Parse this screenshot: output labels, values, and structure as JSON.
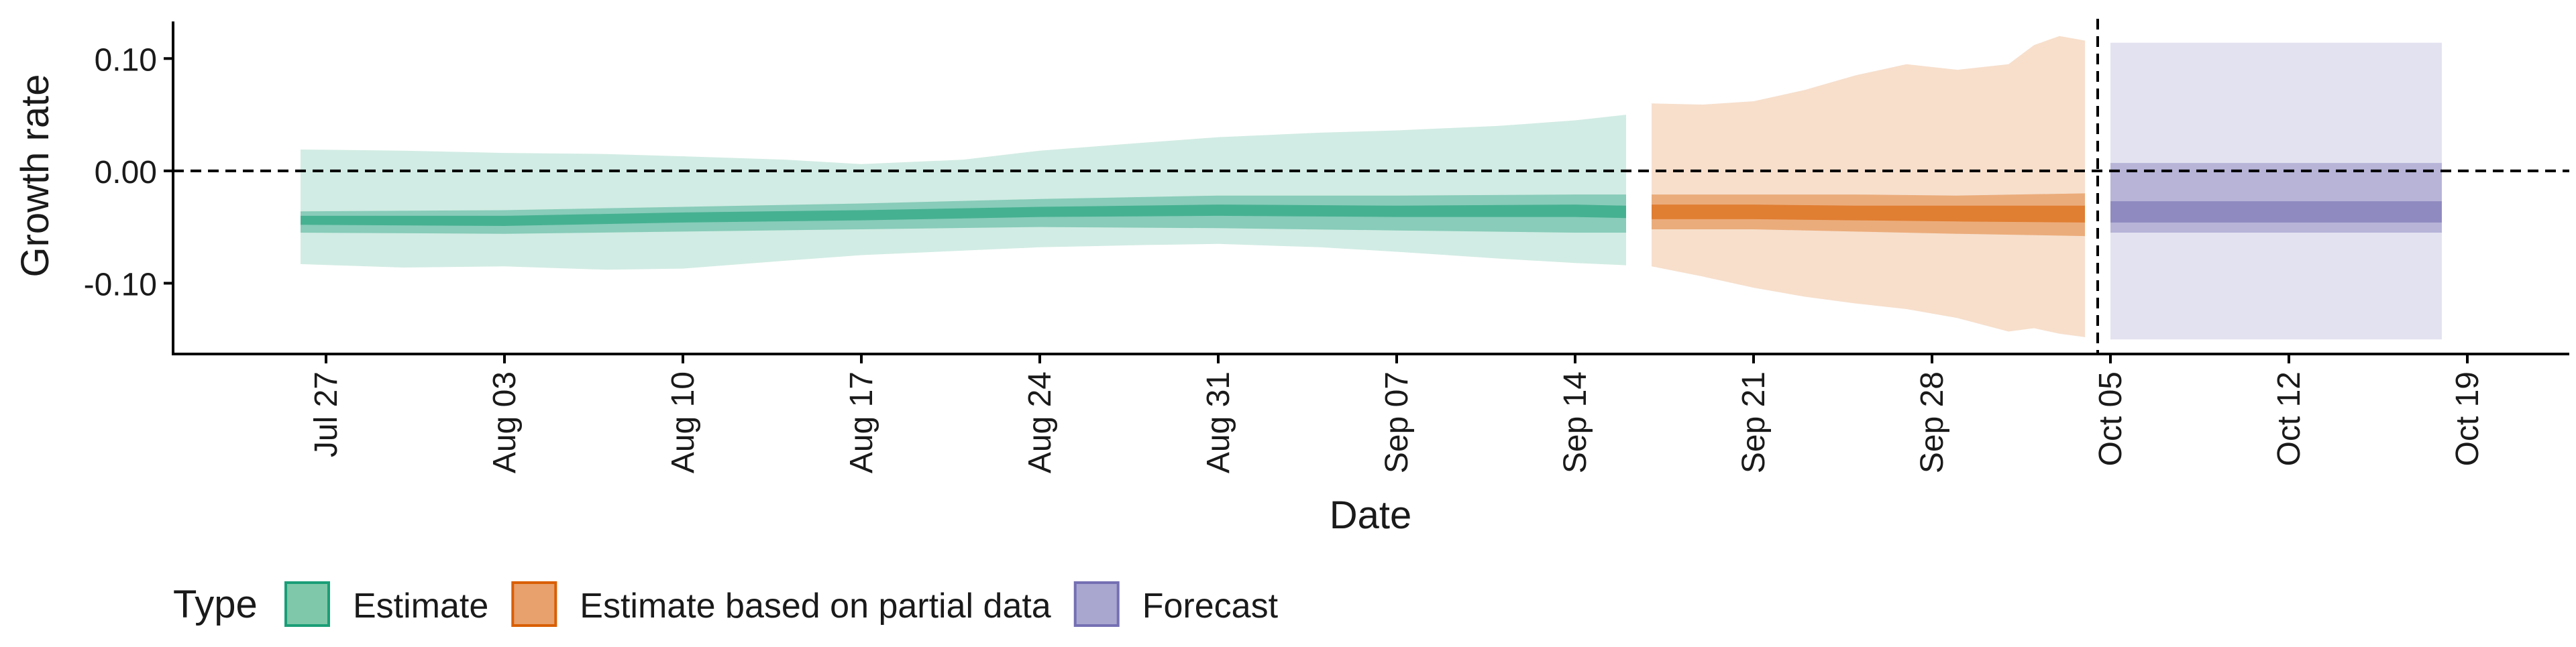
{
  "chart_data": {
    "type": "area",
    "title": "",
    "xlabel": "Date",
    "ylabel": "Growth rate",
    "x_type": "date",
    "xlim": [
      "2020-07-21",
      "2020-10-23"
    ],
    "ylim": [
      -0.163,
      0.133
    ],
    "x_ticks": [
      "2020-07-27",
      "2020-08-03",
      "2020-08-10",
      "2020-08-17",
      "2020-08-24",
      "2020-08-31",
      "2020-09-07",
      "2020-09-14",
      "2020-09-21",
      "2020-09-28",
      "2020-10-05",
      "2020-10-12",
      "2020-10-19"
    ],
    "x_tick_labels": [
      "Jul 27",
      "Aug 03",
      "Aug 10",
      "Aug 17",
      "Aug 24",
      "Aug 31",
      "Sep 07",
      "Sep 14",
      "Sep 21",
      "Sep 28",
      "Oct 05",
      "Oct 12",
      "Oct 19"
    ],
    "y_ticks": [
      0.1,
      0.0,
      -0.1
    ],
    "y_tick_labels": [
      "0.10",
      "0.00",
      "-0.10"
    ],
    "reference_lines": {
      "horizontal_y": 0.0,
      "vertical_x": "2020-10-04"
    },
    "legend": {
      "title": "Type",
      "position": "bottom-left",
      "entries": [
        {
          "label": "Estimate",
          "fill": "#7fc8a9",
          "stroke": "#1b9e77"
        },
        {
          "label": "Estimate based on partial data",
          "fill": "#e8a06c",
          "stroke": "#d95f02"
        },
        {
          "label": "Forecast",
          "fill": "#a9a6d0",
          "stroke": "#7570b3"
        }
      ]
    },
    "series": [
      {
        "name": "Estimate",
        "color": "#1b9e77",
        "ribbons": [
          {
            "interval": "outer",
            "opacity": 0.2,
            "points": [
              {
                "x": "2020-07-26",
                "lo": -0.083,
                "hi": 0.019
              },
              {
                "x": "2020-07-30",
                "lo": -0.086,
                "hi": 0.018
              },
              {
                "x": "2020-08-03",
                "lo": -0.085,
                "hi": 0.016
              },
              {
                "x": "2020-08-07",
                "lo": -0.088,
                "hi": 0.015
              },
              {
                "x": "2020-08-10",
                "lo": -0.087,
                "hi": 0.013
              },
              {
                "x": "2020-08-14",
                "lo": -0.08,
                "hi": 0.01
              },
              {
                "x": "2020-08-17",
                "lo": -0.075,
                "hi": 0.006
              },
              {
                "x": "2020-08-21",
                "lo": -0.071,
                "hi": 0.01
              },
              {
                "x": "2020-08-24",
                "lo": -0.068,
                "hi": 0.018
              },
              {
                "x": "2020-08-28",
                "lo": -0.066,
                "hi": 0.025
              },
              {
                "x": "2020-08-31",
                "lo": -0.065,
                "hi": 0.03
              },
              {
                "x": "2020-09-04",
                "lo": -0.068,
                "hi": 0.034
              },
              {
                "x": "2020-09-07",
                "lo": -0.072,
                "hi": 0.036
              },
              {
                "x": "2020-09-11",
                "lo": -0.078,
                "hi": 0.04
              },
              {
                "x": "2020-09-14",
                "lo": -0.082,
                "hi": 0.045
              },
              {
                "x": "2020-09-16",
                "lo": -0.084,
                "hi": 0.05
              }
            ]
          },
          {
            "interval": "middle",
            "opacity": 0.4,
            "points": [
              {
                "x": "2020-07-26",
                "lo": -0.055,
                "hi": -0.036
              },
              {
                "x": "2020-08-03",
                "lo": -0.056,
                "hi": -0.035
              },
              {
                "x": "2020-08-10",
                "lo": -0.054,
                "hi": -0.032
              },
              {
                "x": "2020-08-17",
                "lo": -0.052,
                "hi": -0.029
              },
              {
                "x": "2020-08-24",
                "lo": -0.05,
                "hi": -0.025
              },
              {
                "x": "2020-08-31",
                "lo": -0.051,
                "hi": -0.022
              },
              {
                "x": "2020-09-07",
                "lo": -0.053,
                "hi": -0.022
              },
              {
                "x": "2020-09-14",
                "lo": -0.055,
                "hi": -0.021
              },
              {
                "x": "2020-09-16",
                "lo": -0.055,
                "hi": -0.021
              }
            ]
          },
          {
            "interval": "inner",
            "opacity": 0.6,
            "points": [
              {
                "x": "2020-07-26",
                "lo": -0.048,
                "hi": -0.04
              },
              {
                "x": "2020-08-03",
                "lo": -0.049,
                "hi": -0.04
              },
              {
                "x": "2020-08-10",
                "lo": -0.046,
                "hi": -0.037
              },
              {
                "x": "2020-08-17",
                "lo": -0.044,
                "hi": -0.035
              },
              {
                "x": "2020-08-24",
                "lo": -0.041,
                "hi": -0.032
              },
              {
                "x": "2020-08-31",
                "lo": -0.04,
                "hi": -0.03
              },
              {
                "x": "2020-09-07",
                "lo": -0.041,
                "hi": -0.031
              },
              {
                "x": "2020-09-14",
                "lo": -0.041,
                "hi": -0.03
              },
              {
                "x": "2020-09-16",
                "lo": -0.042,
                "hi": -0.031
              }
            ]
          }
        ]
      },
      {
        "name": "Estimate based on partial data",
        "color": "#d95f02",
        "ribbons": [
          {
            "interval": "outer",
            "opacity": 0.2,
            "points": [
              {
                "x": "2020-09-17",
                "lo": -0.085,
                "hi": 0.06
              },
              {
                "x": "2020-09-19",
                "lo": -0.094,
                "hi": 0.059
              },
              {
                "x": "2020-09-21",
                "lo": -0.104,
                "hi": 0.062
              },
              {
                "x": "2020-09-23",
                "lo": -0.112,
                "hi": 0.072
              },
              {
                "x": "2020-09-25",
                "lo": -0.118,
                "hi": 0.085
              },
              {
                "x": "2020-09-27",
                "lo": -0.123,
                "hi": 0.095
              },
              {
                "x": "2020-09-29",
                "lo": -0.131,
                "hi": 0.09
              },
              {
                "x": "2020-10-01",
                "lo": -0.143,
                "hi": 0.095
              },
              {
                "x": "2020-10-02",
                "lo": -0.14,
                "hi": 0.112
              },
              {
                "x": "2020-10-03",
                "lo": -0.145,
                "hi": 0.12
              },
              {
                "x": "2020-10-04",
                "lo": -0.148,
                "hi": 0.116
              }
            ]
          },
          {
            "interval": "middle",
            "opacity": 0.4,
            "points": [
              {
                "x": "2020-09-17",
                "lo": -0.052,
                "hi": -0.021
              },
              {
                "x": "2020-09-21",
                "lo": -0.052,
                "hi": -0.021
              },
              {
                "x": "2020-09-25",
                "lo": -0.054,
                "hi": -0.021
              },
              {
                "x": "2020-09-29",
                "lo": -0.056,
                "hi": -0.022
              },
              {
                "x": "2020-10-04",
                "lo": -0.058,
                "hi": -0.02
              }
            ]
          },
          {
            "interval": "inner",
            "opacity": 0.6,
            "points": [
              {
                "x": "2020-09-17",
                "lo": -0.043,
                "hi": -0.03
              },
              {
                "x": "2020-09-21",
                "lo": -0.043,
                "hi": -0.03
              },
              {
                "x": "2020-09-25",
                "lo": -0.044,
                "hi": -0.031
              },
              {
                "x": "2020-09-29",
                "lo": -0.045,
                "hi": -0.031
              },
              {
                "x": "2020-10-04",
                "lo": -0.046,
                "hi": -0.031
              }
            ]
          }
        ]
      },
      {
        "name": "Forecast",
        "color": "#7570b3",
        "ribbons": [
          {
            "interval": "outer",
            "opacity": 0.2,
            "points": [
              {
                "x": "2020-10-05",
                "lo": -0.15,
                "hi": 0.114
              },
              {
                "x": "2020-10-18",
                "lo": -0.15,
                "hi": 0.114
              }
            ]
          },
          {
            "interval": "middle",
            "opacity": 0.4,
            "points": [
              {
                "x": "2020-10-05",
                "lo": -0.055,
                "hi": 0.007
              },
              {
                "x": "2020-10-18",
                "lo": -0.055,
                "hi": 0.007
              }
            ]
          },
          {
            "interval": "inner",
            "opacity": 0.6,
            "points": [
              {
                "x": "2020-10-05",
                "lo": -0.046,
                "hi": -0.027
              },
              {
                "x": "2020-10-18",
                "lo": -0.046,
                "hi": -0.027
              }
            ]
          }
        ]
      }
    ]
  }
}
